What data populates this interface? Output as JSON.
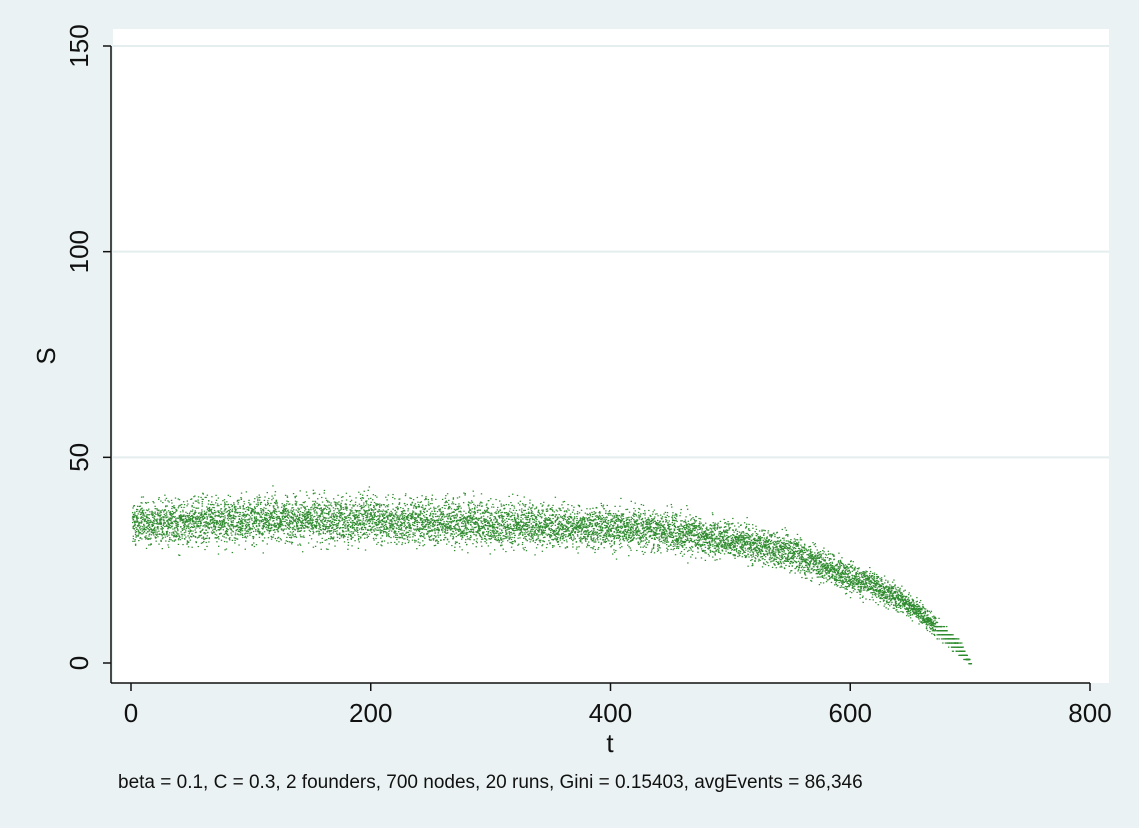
{
  "chart_data": {
    "type": "scatter",
    "title": "",
    "xlabel": "t",
    "ylabel": "S",
    "xlim": [
      0,
      800
    ],
    "ylim": [
      0,
      150
    ],
    "x_ticks": [
      0,
      200,
      400,
      600,
      800
    ],
    "y_ticks": [
      0,
      50,
      100,
      150
    ],
    "x_tick_labels": [
      "0",
      "200",
      "400",
      "600",
      "800"
    ],
    "y_tick_labels": [
      "0",
      "50",
      "100",
      "150"
    ],
    "grid": "horizontal",
    "legend": "none",
    "note": "beta = 0.1, C = 0.3, 2 founders, 700 nodes, 20 runs, Gini = 0.15403, avgEvents = 86,346",
    "marker_color": "#2e8b2e",
    "trend": {
      "t": [
        0,
        100,
        200,
        300,
        400,
        450,
        500,
        550,
        600,
        625,
        650,
        675,
        690,
        700
      ],
      "S": [
        34,
        35,
        35,
        34,
        33,
        32,
        30,
        27,
        21,
        18,
        14,
        8,
        4,
        0
      ]
    },
    "spread": {
      "t": [
        0,
        300,
        500,
        600,
        650,
        690,
        700
      ],
      "S_halfwidth": [
        6,
        6,
        5,
        4,
        3,
        2,
        0
      ]
    },
    "points_per_t": 14
  }
}
